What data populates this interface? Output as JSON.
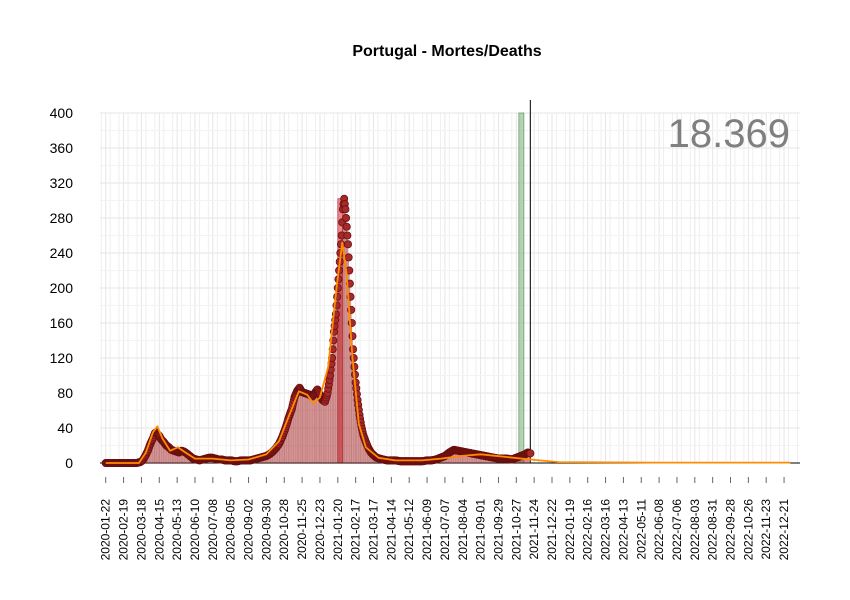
{
  "chart_data": {
    "type": "scatter",
    "title": "Portugal - Mortes/Deaths",
    "total_label": "18.369",
    "xlabel": "",
    "ylabel": "",
    "ylim": [
      0,
      400
    ],
    "xlim": [
      "2020-01-13",
      "2023-01-15"
    ],
    "y_ticks": [
      0,
      40,
      80,
      120,
      160,
      200,
      240,
      280,
      320,
      360,
      400
    ],
    "x_ticks": [
      "2020-01-22",
      "2020-02-19",
      "2020-03-18",
      "2020-04-15",
      "2020-05-13",
      "2020-06-10",
      "2020-07-08",
      "2020-08-05",
      "2020-09-02",
      "2020-09-30",
      "2020-10-28",
      "2020-11-25",
      "2020-12-23",
      "2021-01-20",
      "2021-02-17",
      "2021-03-17",
      "2021-04-14",
      "2021-05-12",
      "2021-06-09",
      "2021-07-07",
      "2021-08-04",
      "2021-09-01",
      "2021-09-29",
      "2021-10-27",
      "2021-11-24",
      "2021-12-22",
      "2022-01-19",
      "2022-02-16",
      "2022-03-16",
      "2022-04-13",
      "2022-05-11",
      "2022-06-08",
      "2022-07-06",
      "2022-08-03",
      "2022-08-31",
      "2022-09-28",
      "2022-10-26",
      "2022-11-23",
      "2022-12-21"
    ],
    "grid": true,
    "colors": {
      "points": "#a52a2a",
      "point_stroke": "#6b0f0f",
      "smooth": "#ff8c00",
      "peak_bar": "#e8737a",
      "today_band": "#8fbc8f",
      "grid": "#e6e6e6"
    },
    "series": [
      {
        "values": [
          [
            "2020-01-22",
            0
          ],
          [
            "2020-02-19",
            0
          ],
          [
            "2020-03-10",
            0
          ],
          [
            "2020-03-16",
            1
          ],
          [
            "2020-03-20",
            3
          ],
          [
            "2020-03-24",
            8
          ],
          [
            "2020-03-28",
            14
          ],
          [
            "2020-04-01",
            22
          ],
          [
            "2020-04-05",
            28
          ],
          [
            "2020-04-08",
            34
          ],
          [
            "2020-04-10",
            35
          ],
          [
            "2020-04-12",
            33
          ],
          [
            "2020-04-15",
            31
          ],
          [
            "2020-04-18",
            27
          ],
          [
            "2020-04-22",
            24
          ],
          [
            "2020-04-26",
            20
          ],
          [
            "2020-04-30",
            18
          ],
          [
            "2020-05-04",
            15
          ],
          [
            "2020-05-08",
            14
          ],
          [
            "2020-05-12",
            13
          ],
          [
            "2020-05-16",
            12
          ],
          [
            "2020-05-20",
            14
          ],
          [
            "2020-05-24",
            13
          ],
          [
            "2020-05-28",
            11
          ],
          [
            "2020-06-02",
            8
          ],
          [
            "2020-06-07",
            5
          ],
          [
            "2020-06-12",
            4
          ],
          [
            "2020-06-17",
            3
          ],
          [
            "2020-06-22",
            4
          ],
          [
            "2020-06-27",
            5
          ],
          [
            "2020-07-02",
            6
          ],
          [
            "2020-07-07",
            6
          ],
          [
            "2020-07-12",
            5
          ],
          [
            "2020-07-17",
            4
          ],
          [
            "2020-07-22",
            4
          ],
          [
            "2020-07-27",
            3
          ],
          [
            "2020-08-01",
            3
          ],
          [
            "2020-08-06",
            3
          ],
          [
            "2020-08-11",
            2
          ],
          [
            "2020-08-16",
            2
          ],
          [
            "2020-08-21",
            3
          ],
          [
            "2020-08-26",
            3
          ],
          [
            "2020-08-31",
            3
          ],
          [
            "2020-09-05",
            3
          ],
          [
            "2020-09-10",
            4
          ],
          [
            "2020-09-15",
            5
          ],
          [
            "2020-09-20",
            6
          ],
          [
            "2020-09-25",
            7
          ],
          [
            "2020-09-30",
            8
          ],
          [
            "2020-10-05",
            10
          ],
          [
            "2020-10-10",
            13
          ],
          [
            "2020-10-15",
            17
          ],
          [
            "2020-10-20",
            22
          ],
          [
            "2020-10-25",
            30
          ],
          [
            "2020-10-30",
            40
          ],
          [
            "2020-11-04",
            52
          ],
          [
            "2020-11-09",
            62
          ],
          [
            "2020-11-13",
            75
          ],
          [
            "2020-11-17",
            82
          ],
          [
            "2020-11-21",
            86
          ],
          [
            "2020-11-25",
            81
          ],
          [
            "2020-11-29",
            80
          ],
          [
            "2020-12-03",
            79
          ],
          [
            "2020-12-07",
            78
          ],
          [
            "2020-12-11",
            76
          ],
          [
            "2020-12-15",
            80
          ],
          [
            "2020-12-19",
            84
          ],
          [
            "2020-12-23",
            78
          ],
          [
            "2020-12-27",
            72
          ],
          [
            "2020-12-31",
            70
          ],
          [
            "2021-01-04",
            80
          ],
          [
            "2021-01-08",
            100
          ],
          [
            "2021-01-11",
            120
          ],
          [
            "2021-01-14",
            150
          ],
          [
            "2021-01-17",
            170
          ],
          [
            "2021-01-20",
            200
          ],
          [
            "2021-01-23",
            230
          ],
          [
            "2021-01-26",
            260
          ],
          [
            "2021-01-28",
            290
          ],
          [
            "2021-01-30",
            302
          ],
          [
            "2021-02-01",
            290
          ],
          [
            "2021-02-03",
            270
          ],
          [
            "2021-02-05",
            250
          ],
          [
            "2021-02-07",
            220
          ],
          [
            "2021-02-09",
            190
          ],
          [
            "2021-02-11",
            160
          ],
          [
            "2021-02-13",
            130
          ],
          [
            "2021-02-15",
            110
          ],
          [
            "2021-02-17",
            92
          ],
          [
            "2021-02-20",
            72
          ],
          [
            "2021-02-23",
            55
          ],
          [
            "2021-02-26",
            42
          ],
          [
            "2021-03-01",
            32
          ],
          [
            "2021-03-05",
            24
          ],
          [
            "2021-03-09",
            17
          ],
          [
            "2021-03-13",
            12
          ],
          [
            "2021-03-17",
            9
          ],
          [
            "2021-03-22",
            6
          ],
          [
            "2021-03-27",
            5
          ],
          [
            "2021-04-01",
            4
          ],
          [
            "2021-04-07",
            3
          ],
          [
            "2021-04-14",
            3
          ],
          [
            "2021-04-21",
            3
          ],
          [
            "2021-04-28",
            2
          ],
          [
            "2021-05-05",
            2
          ],
          [
            "2021-05-12",
            2
          ],
          [
            "2021-05-19",
            2
          ],
          [
            "2021-05-26",
            2
          ],
          [
            "2021-06-02",
            2
          ],
          [
            "2021-06-09",
            3
          ],
          [
            "2021-06-16",
            3
          ],
          [
            "2021-06-23",
            4
          ],
          [
            "2021-06-30",
            6
          ],
          [
            "2021-07-07",
            8
          ],
          [
            "2021-07-14",
            12
          ],
          [
            "2021-07-21",
            15
          ],
          [
            "2021-07-28",
            14
          ],
          [
            "2021-08-04",
            13
          ],
          [
            "2021-08-11",
            12
          ],
          [
            "2021-08-18",
            11
          ],
          [
            "2021-08-25",
            10
          ],
          [
            "2021-09-01",
            9
          ],
          [
            "2021-09-08",
            8
          ],
          [
            "2021-09-15",
            7
          ],
          [
            "2021-09-22",
            6
          ],
          [
            "2021-09-29",
            5
          ],
          [
            "2021-10-06",
            5
          ],
          [
            "2021-10-13",
            5
          ],
          [
            "2021-10-20",
            4
          ],
          [
            "2021-10-27",
            6
          ],
          [
            "2021-11-03",
            8
          ],
          [
            "2021-11-10",
            10
          ],
          [
            "2021-11-14",
            12
          ],
          [
            "2021-11-18",
            11
          ]
        ]
      },
      {
        "name": "smooth",
        "values": [
          [
            "2020-01-22",
            0
          ],
          [
            "2020-03-14",
            0
          ],
          [
            "2020-03-25",
            12
          ],
          [
            "2020-04-05",
            35
          ],
          [
            "2020-04-12",
            42
          ],
          [
            "2020-04-20",
            28
          ],
          [
            "2020-05-02",
            14
          ],
          [
            "2020-05-14",
            18
          ],
          [
            "2020-05-26",
            12
          ],
          [
            "2020-06-10",
            5
          ],
          [
            "2020-07-08",
            5
          ],
          [
            "2020-08-05",
            3
          ],
          [
            "2020-09-02",
            4
          ],
          [
            "2020-09-30",
            10
          ],
          [
            "2020-10-20",
            25
          ],
          [
            "2020-11-05",
            55
          ],
          [
            "2020-11-20",
            82
          ],
          [
            "2020-12-03",
            78
          ],
          [
            "2020-12-13",
            68
          ],
          [
            "2020-12-23",
            75
          ],
          [
            "2021-01-05",
            110
          ],
          [
            "2021-01-18",
            200
          ],
          [
            "2021-01-27",
            252
          ],
          [
            "2021-02-03",
            215
          ],
          [
            "2021-02-12",
            120
          ],
          [
            "2021-02-22",
            45
          ],
          [
            "2021-03-05",
            18
          ],
          [
            "2021-03-25",
            6
          ],
          [
            "2021-04-20",
            3
          ],
          [
            "2021-06-01",
            3
          ],
          [
            "2021-07-01",
            5
          ],
          [
            "2021-08-01",
            8
          ],
          [
            "2021-09-01",
            10
          ],
          [
            "2021-10-10",
            7
          ],
          [
            "2021-11-18",
            4
          ],
          [
            "2022-01-01",
            1
          ],
          [
            "2022-06-01",
            0.5
          ],
          [
            "2022-12-31",
            0.5
          ]
        ]
      }
    ],
    "peak_bar": {
      "from": "2021-01-20",
      "to": "2021-01-22",
      "y": 302
    },
    "today_band": {
      "from": "2021-10-31",
      "to": "2021-11-07"
    },
    "today_line": "2021-11-18"
  }
}
